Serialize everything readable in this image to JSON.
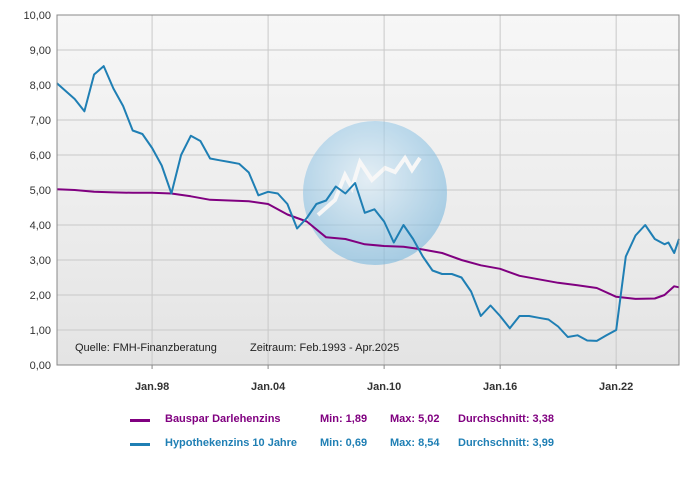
{
  "chart_data": {
    "type": "line",
    "ylim": [
      0,
      10
    ],
    "y_ticks": [
      "0,00",
      "1,00",
      "2,00",
      "3,00",
      "4,00",
      "5,00",
      "6,00",
      "7,00",
      "8,00",
      "9,00",
      "10,00"
    ],
    "x_tick_labels": [
      "Jan.98",
      "Jan.04",
      "Jan.10",
      "Jan.16",
      "Jan.22"
    ],
    "x_tick_dates": [
      1998.0,
      2004.0,
      2010.0,
      2016.0,
      2022.0
    ],
    "xlim": [
      1993.083,
      2025.25
    ],
    "grid": true,
    "source_note": "Quelle: FMH-Finanzberatung",
    "period_note": "Zeitraum: Feb.1993 - Apr.2025",
    "colors": {
      "plot_bg_top": "#f7f7f7",
      "plot_bg_bottom": "#e4e4e4",
      "grid": "#c9c9c9"
    },
    "series": [
      {
        "name": "Bauspar Darlehenzins",
        "color": "#800080",
        "min_label": "Min: 1,89",
        "max_label": "Max: 5,02",
        "avg_label": "Durchschnitt: 3,38",
        "x": [
          1993.08,
          1994.0,
          1995.0,
          1996.0,
          1997.0,
          1998.0,
          1999.0,
          2000.0,
          2001.0,
          2002.0,
          2003.0,
          2004.0,
          2005.0,
          2006.0,
          2007.0,
          2008.0,
          2009.0,
          2010.0,
          2011.0,
          2012.0,
          2013.0,
          2014.0,
          2015.0,
          2016.0,
          2017.0,
          2018.0,
          2019.0,
          2020.0,
          2021.0,
          2022.0,
          2023.0,
          2024.0,
          2024.5,
          2025.0,
          2025.25
        ],
        "y": [
          5.02,
          5.0,
          4.95,
          4.93,
          4.92,
          4.92,
          4.9,
          4.82,
          4.72,
          4.7,
          4.68,
          4.6,
          4.3,
          4.1,
          3.65,
          3.6,
          3.45,
          3.4,
          3.38,
          3.3,
          3.2,
          3.0,
          2.85,
          2.75,
          2.55,
          2.45,
          2.35,
          2.28,
          2.2,
          1.95,
          1.89,
          1.9,
          2.0,
          2.25,
          2.22
        ]
      },
      {
        "name": "Hypothekenzins 10 Jahre",
        "color": "#1f7fb4",
        "min_label": "Min: 0,69",
        "max_label": "Max: 8,54",
        "avg_label": "Durchschnitt: 3,99",
        "x": [
          1993.08,
          1994.0,
          1994.5,
          1995.0,
          1995.5,
          1996.0,
          1996.5,
          1997.0,
          1997.5,
          1998.0,
          1998.5,
          1999.0,
          1999.5,
          2000.0,
          2000.5,
          2001.0,
          2001.5,
          2002.0,
          2002.5,
          2003.0,
          2003.5,
          2004.0,
          2004.5,
          2005.0,
          2005.5,
          2006.0,
          2006.5,
          2007.0,
          2007.5,
          2008.0,
          2008.5,
          2009.0,
          2009.5,
          2010.0,
          2010.5,
          2011.0,
          2011.5,
          2012.0,
          2012.5,
          2013.0,
          2013.5,
          2014.0,
          2014.5,
          2015.0,
          2015.5,
          2016.0,
          2016.5,
          2017.0,
          2017.5,
          2018.0,
          2018.5,
          2019.0,
          2019.5,
          2020.0,
          2020.5,
          2021.0,
          2021.5,
          2022.0,
          2022.5,
          2023.0,
          2023.5,
          2024.0,
          2024.5,
          2024.7,
          2025.0,
          2025.25
        ],
        "y": [
          8.05,
          7.6,
          7.25,
          8.3,
          8.54,
          7.9,
          7.4,
          6.7,
          6.6,
          6.2,
          5.7,
          4.9,
          6.0,
          6.55,
          6.4,
          5.9,
          5.85,
          5.8,
          5.75,
          5.5,
          4.85,
          4.95,
          4.9,
          4.6,
          3.9,
          4.2,
          4.6,
          4.7,
          5.1,
          4.9,
          5.2,
          4.35,
          4.45,
          4.1,
          3.5,
          4.0,
          3.6,
          3.1,
          2.7,
          2.6,
          2.6,
          2.5,
          2.1,
          1.4,
          1.7,
          1.4,
          1.05,
          1.4,
          1.4,
          1.35,
          1.3,
          1.1,
          0.8,
          0.85,
          0.7,
          0.69,
          0.85,
          1.0,
          3.1,
          3.7,
          4.0,
          3.6,
          3.45,
          3.5,
          3.2,
          3.6
        ]
      }
    ]
  }
}
